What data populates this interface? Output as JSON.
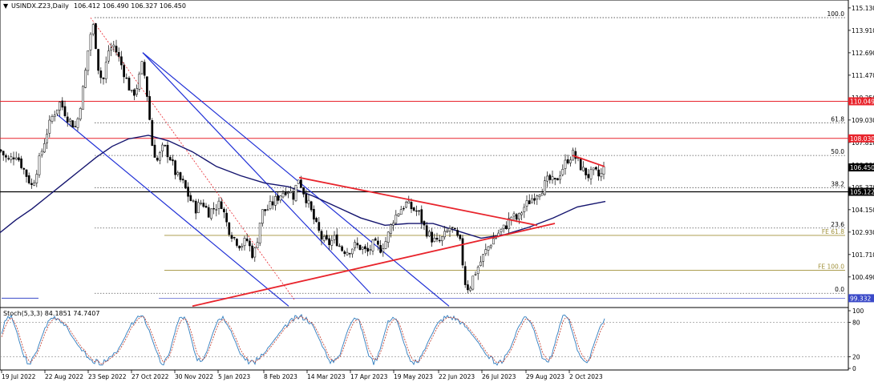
{
  "chart_data": {
    "type": "candlestick",
    "header": {
      "symbol": "USINDX.Z23,Daily",
      "ohlc": "106.412 106.490 106.327 106.450"
    },
    "price_axis": {
      "range": [
        99.0,
        115.3
      ],
      "ticks": [
        "115.130",
        "113.910",
        "112.690",
        "111.470",
        "110.250",
        "109.030",
        "107.810",
        "106.590",
        "105.370",
        "104.150",
        "102.930",
        "101.710",
        "100.490"
      ]
    },
    "price_labels": [
      {
        "name": "resistance-110",
        "text": "110.049",
        "value": 110.049,
        "bg": "#e8242c",
        "fg": "#ffffff"
      },
      {
        "name": "resistance-108",
        "text": "108.030",
        "value": 108.03,
        "bg": "#e8242c",
        "fg": "#ffffff"
      },
      {
        "name": "current-price",
        "text": "106.450",
        "value": 106.45,
        "bg": "#000000",
        "fg": "#ffffff"
      },
      {
        "name": "support-105",
        "text": "105.122",
        "value": 105.122,
        "bg": "#000000",
        "fg": "#ffffff"
      },
      {
        "name": "low-99",
        "text": "99.332",
        "value": 99.332,
        "bg": "#3a49c8",
        "fg": "#ffffff"
      }
    ],
    "fib_retracement": [
      {
        "label": "100.0",
        "value": 114.6
      },
      {
        "label": "61.8",
        "value": 108.88
      },
      {
        "label": "50.0",
        "value": 107.1
      },
      {
        "label": "38.2",
        "value": 105.35
      },
      {
        "label": "23.6",
        "value": 103.15
      },
      {
        "label": "0.0",
        "value": 99.6
      }
    ],
    "fib_expansion": [
      {
        "label": "FE 61.8",
        "value": 102.75
      },
      {
        "label": "FE 100.0",
        "value": 100.85
      }
    ],
    "oscillator": {
      "title": "Stoch(5,3,3) 84.1851 74.7407",
      "ticks": [
        "100",
        "80",
        "20",
        "0"
      ]
    },
    "time_axis": {
      "labels": [
        "19 Jul 2022",
        "22 Aug 2022",
        "23 Sep 2022",
        "27 Oct 2022",
        "30 Nov 2022",
        "5 Jan 2023",
        "8 Feb 2023",
        "14 Mar 2023",
        "17 Apr 2023",
        "19 May 2023",
        "22 Jun 2023",
        "26 Jul 2023",
        "29 Aug 2023",
        "2 Oct 2023"
      ]
    },
    "price_path": [
      [
        0,
        107.4
      ],
      [
        10,
        106.8
      ],
      [
        20,
        107.2
      ],
      [
        30,
        106.3
      ],
      [
        40,
        105.4
      ],
      [
        50,
        107.0
      ],
      [
        58,
        108.3
      ],
      [
        65,
        109.2
      ],
      [
        75,
        110.0
      ],
      [
        85,
        109.1
      ],
      [
        95,
        108.6
      ],
      [
        105,
        111.1
      ],
      [
        112,
        113.6
      ],
      [
        117,
        114.2
      ],
      [
        122,
        112.0
      ],
      [
        128,
        111.0
      ],
      [
        135,
        112.8
      ],
      [
        142,
        113.1
      ],
      [
        150,
        112.2
      ],
      [
        158,
        111.2
      ],
      [
        165,
        110.3
      ],
      [
        172,
        111.0
      ],
      [
        178,
        112.2
      ],
      [
        184,
        110.2
      ],
      [
        190,
        107.6
      ],
      [
        196,
        106.8
      ],
      [
        204,
        107.6
      ],
      [
        212,
        107.0
      ],
      [
        220,
        106.0
      ],
      [
        228,
        105.6
      ],
      [
        236,
        104.8
      ],
      [
        244,
        104.2
      ],
      [
        252,
        104.6
      ],
      [
        260,
        104.0
      ],
      [
        268,
        104.3
      ],
      [
        276,
        104.5
      ],
      [
        284,
        103.2
      ],
      [
        292,
        102.6
      ],
      [
        300,
        102.2
      ],
      [
        308,
        102.5
      ],
      [
        316,
        101.6
      ],
      [
        320,
        102.3
      ],
      [
        326,
        104.0
      ],
      [
        334,
        104.2
      ],
      [
        342,
        104.6
      ],
      [
        350,
        105.0
      ],
      [
        358,
        105.3
      ],
      [
        366,
        104.9
      ],
      [
        372,
        105.9
      ],
      [
        378,
        105.2
      ],
      [
        386,
        104.3
      ],
      [
        394,
        103.3
      ],
      [
        402,
        102.5
      ],
      [
        410,
        102.3
      ],
      [
        418,
        102.6
      ],
      [
        426,
        102.0
      ],
      [
        434,
        101.9
      ],
      [
        442,
        102.2
      ],
      [
        450,
        102.1
      ],
      [
        458,
        101.8
      ],
      [
        466,
        102.3
      ],
      [
        474,
        102.0
      ],
      [
        482,
        102.5
      ],
      [
        490,
        103.6
      ],
      [
        498,
        104.1
      ],
      [
        506,
        104.5
      ],
      [
        514,
        104.2
      ],
      [
        522,
        104.0
      ],
      [
        530,
        103.1
      ],
      [
        538,
        102.6
      ],
      [
        546,
        102.3
      ],
      [
        554,
        102.7
      ],
      [
        562,
        103.2
      ],
      [
        568,
        102.8
      ],
      [
        574,
        102.3
      ],
      [
        580,
        100.2
      ],
      [
        585,
        99.8
      ],
      [
        590,
        100.5
      ],
      [
        598,
        101.2
      ],
      [
        606,
        101.9
      ],
      [
        614,
        102.5
      ],
      [
        622,
        102.9
      ],
      [
        630,
        103.2
      ],
      [
        638,
        103.8
      ],
      [
        646,
        103.6
      ],
      [
        652,
        104.2
      ],
      [
        660,
        104.6
      ],
      [
        668,
        105.0
      ],
      [
        676,
        105.3
      ],
      [
        684,
        105.8
      ],
      [
        692,
        105.6
      ],
      [
        700,
        106.3
      ],
      [
        708,
        106.9
      ],
      [
        715,
        107.2
      ],
      [
        720,
        106.8
      ],
      [
        727,
        106.3
      ],
      [
        734,
        106.0
      ],
      [
        742,
        106.2
      ],
      [
        748,
        105.9
      ],
      [
        754,
        106.45
      ]
    ],
    "ma_path": [
      [
        0,
        102.9
      ],
      [
        20,
        103.6
      ],
      [
        40,
        104.2
      ],
      [
        60,
        104.9
      ],
      [
        80,
        105.6
      ],
      [
        100,
        106.3
      ],
      [
        120,
        107.0
      ],
      [
        140,
        107.6
      ],
      [
        160,
        108.0
      ],
      [
        185,
        108.2
      ],
      [
        210,
        107.9
      ],
      [
        240,
        107.3
      ],
      [
        270,
        106.5
      ],
      [
        300,
        106.0
      ],
      [
        330,
        105.6
      ],
      [
        360,
        105.4
      ],
      [
        390,
        104.9
      ],
      [
        420,
        104.3
      ],
      [
        450,
        103.7
      ],
      [
        480,
        103.3
      ],
      [
        510,
        103.4
      ],
      [
        540,
        103.4
      ],
      [
        570,
        103.0
      ],
      [
        600,
        102.6
      ],
      [
        630,
        102.8
      ],
      [
        660,
        103.2
      ],
      [
        690,
        103.7
      ],
      [
        720,
        104.3
      ],
      [
        755,
        104.6
      ]
    ],
    "channel_lines": [
      [
        [
          178,
          112.7
        ],
        [
          462,
          99.6
        ]
      ],
      [
        [
          178,
          112.7
        ],
        [
          560,
          98.9
        ]
      ],
      [
        [
          72,
          109.3
        ],
        [
          360,
          98.9
        ]
      ]
    ],
    "trend_lines": [
      [
        [
          373,
          105.9
        ],
        [
          670,
          103.3
        ]
      ],
      [
        [
          240,
          98.9
        ],
        [
          692,
          103.4
        ]
      ],
      [
        [
          714,
          107.1
        ],
        [
          754,
          106.5
        ]
      ]
    ],
    "dotted_red_path": [
      [
        113,
        114.6
      ],
      [
        368,
        99.2
      ]
    ],
    "horizontal_lines": {
      "red": [
        110.049,
        108.03
      ],
      "black": [
        105.122
      ],
      "dotted_top": 114.6
    },
    "stoch_series": {
      "k_color": "#2f7dbf",
      "d_color": "#c0392b"
    }
  }
}
